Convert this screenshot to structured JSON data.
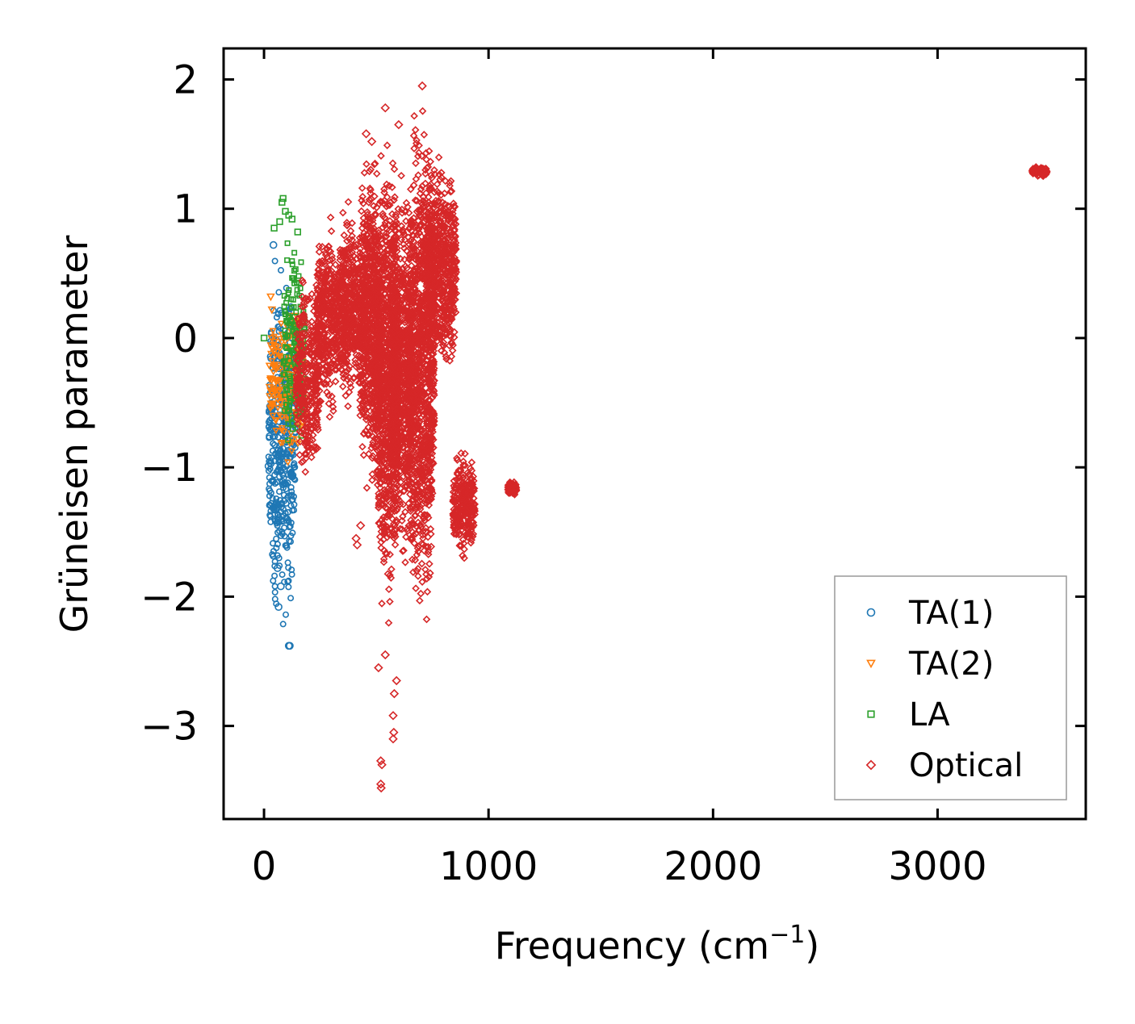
{
  "chart_data": {
    "type": "scatter",
    "title": "",
    "xlabel": "Frequency (cm",
    "xlabel_sup": "−1",
    "xlabel_suffix": ")",
    "ylabel": "Grüneisen parameter",
    "xlim": [
      -180,
      3660
    ],
    "ylim": [
      -3.72,
      2.24
    ],
    "xticks": [
      0,
      1000,
      2000,
      3000
    ],
    "xtick_labels": [
      "0",
      "1000",
      "2000",
      "3000"
    ],
    "yticks": [
      2,
      1,
      0,
      -1,
      -2,
      -3
    ],
    "ytick_labels": [
      "2",
      "1",
      "0",
      "−1",
      "−2",
      "−3"
    ],
    "grid": false,
    "legend_position": "lower-right",
    "series": [
      {
        "name": "TA(1)",
        "marker": "circle",
        "color": "#1f77b4",
        "regions": [
          {
            "x_range": [
              20,
              140
            ],
            "y_range": [
              -2.38,
              0.72
            ],
            "density": 420
          }
        ],
        "points": [
          [
            60,
            -1.78
          ],
          [
            65,
            -2.08
          ],
          [
            75,
            -1.92
          ],
          [
            110,
            -2.38
          ],
          [
            115,
            -2.38
          ],
          [
            20,
            -0.99
          ],
          [
            25,
            -0.76
          ],
          [
            42,
            0.72
          ],
          [
            30,
            -0.97
          ]
        ]
      },
      {
        "name": "TA(2)",
        "marker": "triangle-down",
        "color": "#ff7f0e",
        "regions": [
          {
            "x_range": [
              20,
              185
            ],
            "y_range": [
              -1.1,
              0.38
            ],
            "density": 200
          }
        ],
        "points": [
          [
            25,
            -0.38
          ],
          [
            30,
            0.32
          ],
          [
            35,
            0.22
          ]
        ]
      },
      {
        "name": "LA",
        "marker": "square",
        "color": "#2ca02c",
        "regions": [
          {
            "x_range": [
              85,
              185
            ],
            "y_range": [
              -1.15,
              0.9
            ],
            "density": 160
          }
        ],
        "points": [
          [
            80,
            1.05
          ],
          [
            85,
            1.08
          ],
          [
            95,
            0.98
          ],
          [
            110,
            0.95
          ],
          [
            125,
            0.92
          ],
          [
            0,
            0.0
          ],
          [
            45,
            0.85
          ],
          [
            70,
            0.9
          ],
          [
            150,
            0.82
          ]
        ]
      },
      {
        "name": "Optical",
        "marker": "diamond",
        "color": "#d62728",
        "regions": [
          {
            "x_range": [
              140,
              250
            ],
            "y_range": [
              -1.2,
              0.6
            ],
            "density": 320
          },
          {
            "x_range": [
              230,
              330
            ],
            "y_range": [
              -0.7,
              1.0
            ],
            "density": 380
          },
          {
            "x_range": [
              330,
              420
            ],
            "y_range": [
              -0.6,
              1.1
            ],
            "density": 380
          },
          {
            "x_range": [
              420,
              520
            ],
            "y_range": [
              -1.3,
              1.6
            ],
            "density": 700
          },
          {
            "x_range": [
              500,
              600
            ],
            "y_range": [
              -2.3,
              1.65
            ],
            "density": 900
          },
          {
            "x_range": [
              560,
              660
            ],
            "y_range": [
              -1.9,
              1.45
            ],
            "density": 700
          },
          {
            "x_range": [
              640,
              760
            ],
            "y_range": [
              -2.35,
              1.95
            ],
            "density": 1100
          },
          {
            "x_range": [
              720,
              860
            ],
            "y_range": [
              -0.4,
              1.5
            ],
            "density": 600
          },
          {
            "x_range": [
              840,
              940
            ],
            "y_range": [
              -1.75,
              -0.83
            ],
            "density": 260
          },
          {
            "x_range": [
              1085,
              1125
            ],
            "y_range": [
              -1.22,
              -1.1
            ],
            "density": 100
          },
          {
            "x_range": [
              3420,
              3490
            ],
            "y_range": [
              1.24,
              1.34
            ],
            "density": 100
          }
        ],
        "points": [
          [
            520,
            -3.45
          ],
          [
            522,
            -3.48
          ],
          [
            520,
            -3.27
          ],
          [
            525,
            -3.3
          ],
          [
            575,
            -2.92
          ],
          [
            578,
            -3.05
          ],
          [
            575,
            -3.1
          ],
          [
            580,
            -2.75
          ],
          [
            590,
            -2.65
          ],
          [
            510,
            -2.55
          ],
          [
            540,
            -2.45
          ],
          [
            410,
            -1.55
          ],
          [
            415,
            -1.6
          ],
          [
            430,
            -1.45
          ],
          [
            540,
            1.78
          ],
          [
            600,
            1.65
          ],
          [
            455,
            1.58
          ],
          [
            480,
            1.52
          ],
          [
            705,
            1.95
          ]
        ]
      }
    ]
  }
}
